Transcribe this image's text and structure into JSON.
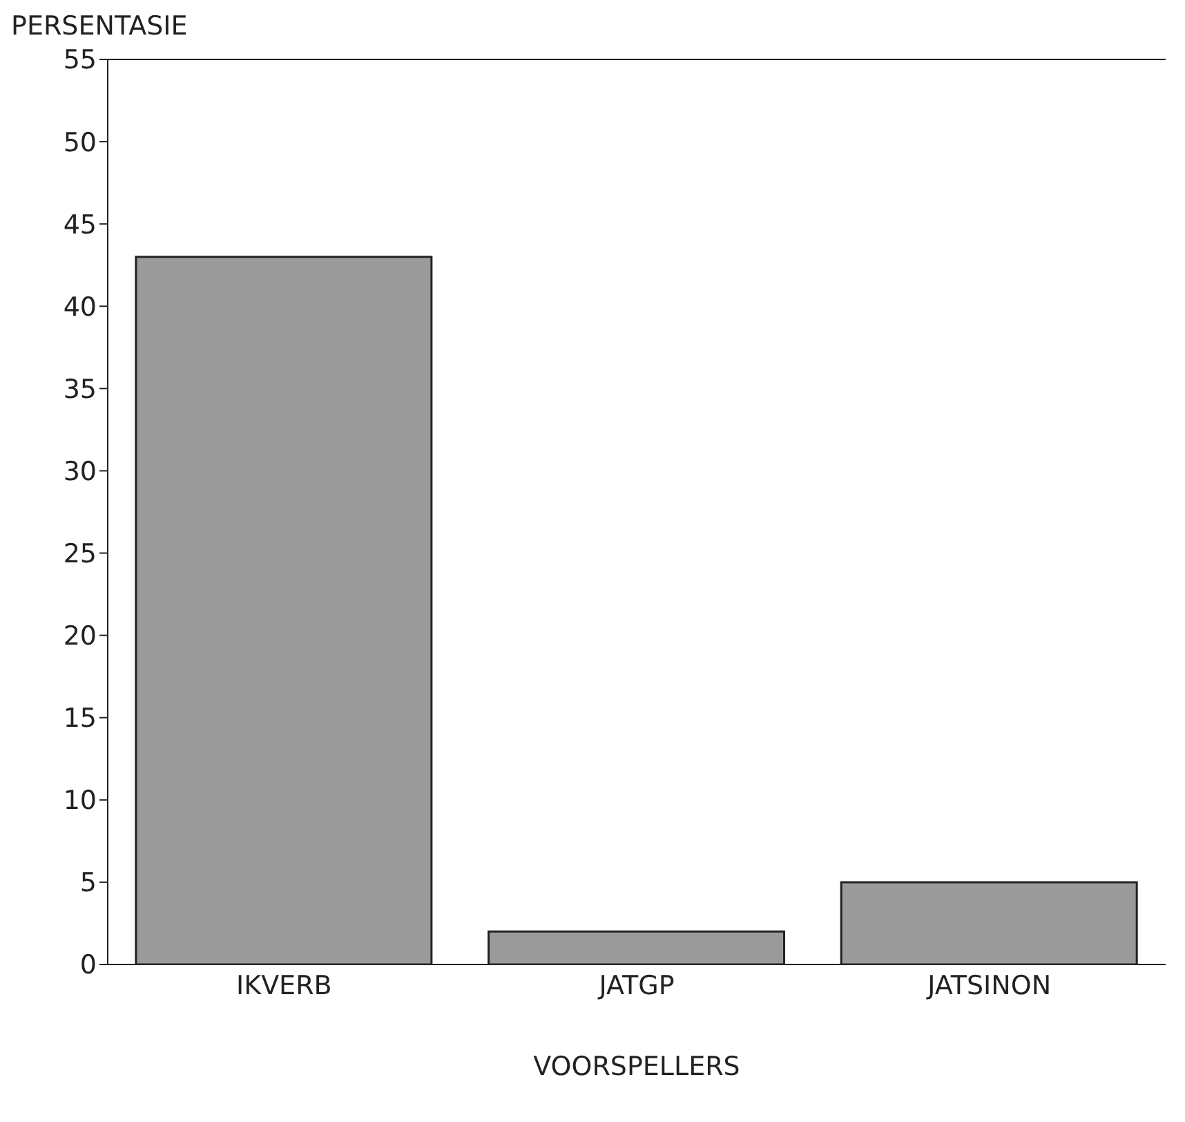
{
  "chart_data": {
    "type": "bar",
    "ylabel": "PERSENTASIE",
    "xlabel": "VOORSPELLERS",
    "categories": [
      "IKVERB",
      "JATGP",
      "JATSINON"
    ],
    "values": [
      43,
      2,
      5
    ],
    "color": "#9a9a9a",
    "ylim": [
      0,
      55
    ],
    "yticks": [
      0,
      5,
      10,
      15,
      20,
      25,
      30,
      35,
      40,
      45,
      50,
      55
    ],
    "grid": false
  }
}
